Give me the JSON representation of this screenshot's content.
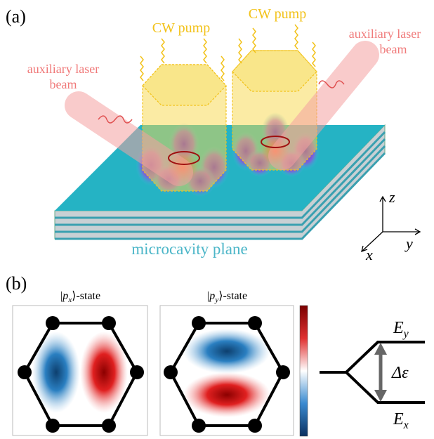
{
  "panel_a": {
    "label": "(a)",
    "pump_labels": [
      "CW pump",
      "CW pump"
    ],
    "laser_labels": [
      [
        "auxiliary laser",
        "beam"
      ],
      [
        "auxiliary laser",
        "beam"
      ]
    ],
    "plane_label": "microcavity plane",
    "axes": {
      "z": "z",
      "y": "y",
      "x": "x"
    }
  },
  "panel_b": {
    "label": "(b)",
    "states": [
      [
        "|p",
        "x",
        "⟩-state"
      ],
      [
        "|p",
        "y",
        "⟩-state"
      ]
    ],
    "levels": {
      "upper": [
        "E",
        "y"
      ],
      "gap": "Δε",
      "lower": [
        "E",
        "x"
      ]
    }
  }
}
